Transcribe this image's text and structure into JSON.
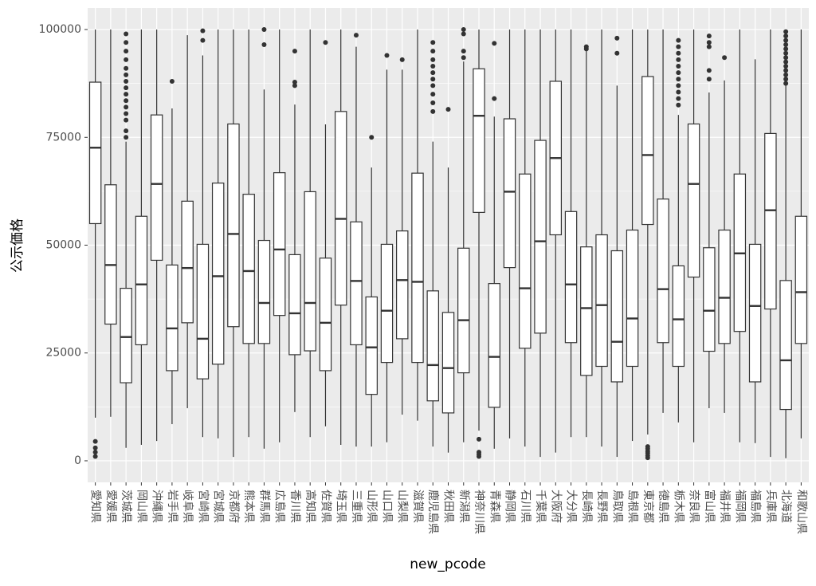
{
  "chart_data": {
    "type": "boxplot",
    "x_label": "new_pcode",
    "y_label": "公示価格",
    "categories": [
      "愛知県",
      "愛媛県",
      "茨城県",
      "岡山県",
      "沖縄県",
      "岩手県",
      "岐阜県",
      "宮崎県",
      "宮城県",
      "京都府",
      "熊本県",
      "群馬県",
      "広島県",
      "香川県",
      "高知県",
      "佐賀県",
      "埼玉県",
      "三重県",
      "山形県",
      "山口県",
      "山梨県",
      "滋賀県",
      "鹿児島県",
      "秋田県",
      "新潟県",
      "神奈川県",
      "青森県",
      "静岡県",
      "石川県",
      "千葉県",
      "大阪府",
      "大分県",
      "長崎県",
      "長野県",
      "鳥取県",
      "島根県",
      "東京都",
      "徳島県",
      "栃木県",
      "奈良県",
      "富山県",
      "福井県",
      "福岡県",
      "福島県",
      "兵庫県",
      "北海道",
      "和歌山県"
    ],
    "low": [
      10000,
      10200,
      3000,
      3700,
      4600,
      8500,
      12200,
      5500,
      5200,
      900,
      5500,
      2800,
      4300,
      11300,
      5500,
      8000,
      3700,
      3300,
      3300,
      4300,
      10700,
      9300,
      3300,
      1900,
      4300,
      7000,
      2800,
      5200,
      3300,
      900,
      1900,
      5500,
      5500,
      3300,
      900,
      4600,
      6100,
      11100,
      8900,
      4300,
      12200,
      11100,
      4300,
      4100,
      900,
      600,
      5200
    ],
    "q1": [
      55000,
      31700,
      18100,
      26900,
      46500,
      20900,
      32000,
      19000,
      22400,
      31100,
      27200,
      27200,
      33700,
      24600,
      25500,
      20900,
      36100,
      26900,
      15400,
      22800,
      28300,
      22800,
      13900,
      11100,
      20400,
      57600,
      12400,
      44800,
      26100,
      29600,
      52400,
      27400,
      19800,
      21900,
      18300,
      21900,
      54800,
      27400,
      21900,
      42600,
      25400,
      27200,
      30000,
      18300,
      35200,
      11900,
      27200
    ],
    "median": [
      72600,
      45400,
      28700,
      40900,
      64200,
      30700,
      44700,
      28300,
      42800,
      52600,
      44000,
      36600,
      49000,
      34200,
      36600,
      32000,
      56100,
      41700,
      26300,
      34800,
      41900,
      41500,
      22200,
      21500,
      32600,
      80000,
      24100,
      62400,
      40000,
      50900,
      70200,
      40900,
      35400,
      36100,
      27600,
      33000,
      70900,
      39800,
      32800,
      64200,
      34800,
      37800,
      48100,
      35900,
      58100,
      23300,
      39100
    ],
    "q3": [
      87800,
      64000,
      40000,
      56700,
      80200,
      45400,
      60200,
      50200,
      64400,
      78100,
      61800,
      51100,
      66800,
      47800,
      62400,
      47000,
      81000,
      55400,
      38000,
      50200,
      53300,
      66700,
      39400,
      34400,
      49300,
      90900,
      41100,
      79300,
      66500,
      74300,
      88000,
      57800,
      49600,
      52400,
      48700,
      53500,
      89100,
      60700,
      45200,
      78100,
      49400,
      53500,
      66500,
      50200,
      75900,
      41800,
      56700
    ],
    "high": [
      100000,
      100000,
      74000,
      100000,
      100000,
      81700,
      98700,
      94000,
      100000,
      100000,
      100000,
      86100,
      100000,
      82600,
      100000,
      78000,
      100000,
      96000,
      68000,
      90700,
      90700,
      100000,
      74000,
      68000,
      92600,
      100000,
      79800,
      100000,
      100000,
      100000,
      100000,
      100000,
      95000,
      100000,
      87000,
      100000,
      100000,
      100000,
      80200,
      100000,
      85400,
      88200,
      100000,
      93100,
      100000,
      87000,
      100000
    ],
    "outliers": [
      [
        4500,
        3000,
        2000,
        1000
      ],
      [],
      [
        75000,
        76500,
        79000,
        80500,
        82000,
        83500,
        85000,
        86500,
        88000,
        89500,
        91000,
        93000,
        95000,
        97000,
        99000
      ],
      [],
      [],
      [
        88000
      ],
      [],
      [
        97500,
        99700
      ],
      [],
      [],
      [],
      [
        96500,
        100000
      ],
      [],
      [
        87000,
        87800,
        95000
      ],
      [],
      [
        97000
      ],
      [],
      [
        98700
      ],
      [
        75000
      ],
      [
        94000
      ],
      [
        93000
      ],
      [],
      [
        81000,
        83000,
        85000,
        87000,
        88500,
        90000,
        91500,
        93000,
        95000,
        97000
      ],
      [
        81500
      ],
      [
        93500,
        95000,
        99000,
        100000
      ],
      [
        5000,
        2000,
        1500,
        1000
      ],
      [
        84000,
        96800
      ],
      [],
      [],
      [],
      [],
      [],
      [
        95500,
        96000
      ],
      [],
      [
        94500,
        98000
      ],
      [],
      [
        3300,
        2800,
        2200,
        1800,
        1200,
        700
      ],
      [],
      [
        82500,
        84000,
        85500,
        87000,
        88500,
        90000,
        91500,
        93000,
        94500,
        96000,
        97500
      ],
      [],
      [
        88500,
        90500,
        96000,
        97000,
        98500
      ],
      [
        93500
      ],
      [],
      [],
      [],
      [
        87500,
        88500,
        89500,
        90500,
        91500,
        92500,
        93500,
        94500,
        95500,
        96500,
        97500,
        98500,
        99500
      ],
      []
    ],
    "ylim": [
      -5000,
      105000
    ],
    "yticks": [
      0,
      25000,
      50000,
      75000,
      100000
    ],
    "grid": true,
    "minor_grid": true,
    "box_color": "#ffffff",
    "line_color": "#333333",
    "panel_color": "#ebebeb"
  }
}
